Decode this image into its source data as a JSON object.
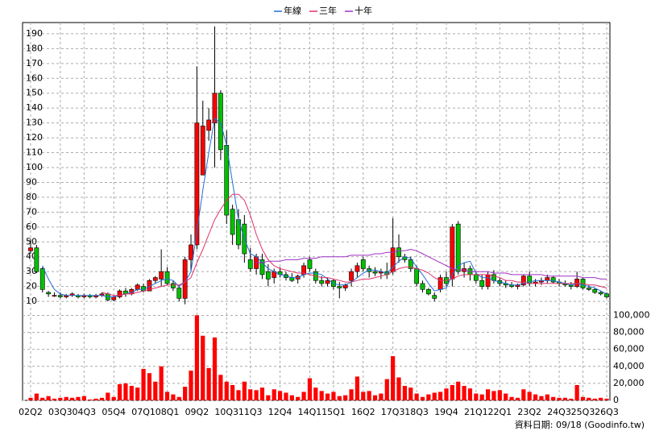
{
  "chart_data": {
    "type": "candlestick",
    "footnote": "資料日期: 09/18 (Goodinfo.tw)",
    "up_color": "#ff0000",
    "down_color": "#00c000",
    "categories": [
      "02Q2",
      null,
      null,
      null,
      null,
      "03Q3",
      null,
      null,
      null,
      "04Q3",
      null,
      null,
      null,
      null,
      "05Q4",
      null,
      null,
      null,
      null,
      "07Q1",
      null,
      null,
      null,
      "08Q1",
      null,
      null,
      null,
      null,
      "09Q2",
      null,
      null,
      null,
      null,
      "10Q3",
      null,
      null,
      null,
      "11Q3",
      null,
      null,
      null,
      null,
      "12Q4",
      null,
      null,
      null,
      null,
      "14Q1",
      null,
      null,
      null,
      "15Q1",
      null,
      null,
      null,
      null,
      "16Q2",
      null,
      null,
      null,
      null,
      "17Q3",
      null,
      null,
      null,
      "18Q3",
      null,
      null,
      null,
      null,
      "19Q4",
      null,
      null,
      null,
      null,
      "21Q1",
      null,
      null,
      null,
      "22Q1",
      null,
      null,
      null,
      null,
      "23Q2",
      null,
      null,
      null,
      null,
      "24Q3",
      null,
      null,
      null,
      "25Q3",
      null,
      null,
      null,
      "26Q3"
    ],
    "open": [
      44,
      46,
      32,
      16,
      14,
      14,
      13,
      14,
      14,
      13,
      14,
      13,
      14,
      15,
      11,
      13,
      17,
      15,
      18,
      20,
      17,
      24,
      25,
      30,
      22,
      19,
      12,
      38,
      48,
      95,
      125,
      130,
      150,
      115,
      72,
      65,
      62,
      38,
      32,
      38,
      30,
      26,
      30,
      28,
      26,
      25,
      28,
      38,
      30,
      24,
      22,
      24,
      20,
      19,
      24,
      30,
      38,
      32,
      30,
      29,
      30,
      30,
      46,
      40,
      38,
      32,
      22,
      18,
      14,
      18,
      26,
      25,
      62,
      30,
      32,
      28,
      24,
      20,
      28,
      24,
      22,
      21,
      20,
      21,
      27,
      22,
      23,
      24,
      26,
      23,
      22,
      21,
      20,
      25,
      19,
      18,
      16,
      15
    ],
    "high": [
      52,
      48,
      33,
      17,
      16,
      16,
      15,
      16,
      15,
      15,
      15,
      15,
      16,
      16,
      14,
      18,
      19,
      19,
      22,
      22,
      25,
      27,
      45,
      33,
      24,
      21,
      40,
      55,
      168,
      145,
      140,
      195,
      152,
      125,
      75,
      72,
      68,
      46,
      42,
      42,
      35,
      32,
      33,
      30,
      29,
      28,
      36,
      40,
      32,
      27,
      26,
      25,
      23,
      22,
      32,
      36,
      40,
      34,
      33,
      32,
      36,
      66,
      55,
      42,
      40,
      34,
      24,
      19,
      16,
      28,
      30,
      62,
      64,
      36,
      34,
      30,
      28,
      30,
      31,
      26,
      24,
      23,
      22,
      28,
      30,
      25,
      26,
      28,
      27,
      25,
      24,
      23,
      30,
      26,
      21,
      19,
      17,
      16
    ],
    "low": [
      42,
      29,
      16,
      13,
      13,
      12,
      12,
      13,
      12,
      12,
      12,
      12,
      13,
      10,
      10,
      12,
      13,
      14,
      17,
      16,
      17,
      22,
      20,
      21,
      17,
      10,
      8,
      30,
      45,
      95,
      118,
      100,
      105,
      62,
      48,
      45,
      36,
      30,
      28,
      25,
      20,
      22,
      26,
      24,
      23,
      22,
      26,
      30,
      22,
      20,
      20,
      18,
      12,
      17,
      20,
      26,
      30,
      26,
      27,
      25,
      25,
      28,
      36,
      36,
      30,
      20,
      16,
      14,
      10,
      16,
      20,
      20,
      28,
      26,
      24,
      22,
      18,
      18,
      22,
      20,
      19,
      19,
      18,
      20,
      20,
      20,
      21,
      22,
      22,
      20,
      20,
      18,
      19,
      18,
      17,
      15,
      14,
      12
    ],
    "close": [
      46,
      30,
      18,
      15,
      14,
      13,
      14,
      15,
      13,
      14,
      13,
      14,
      15,
      11,
      13,
      17,
      15,
      18,
      21,
      17,
      24,
      26,
      30,
      22,
      19,
      12,
      38,
      48,
      130,
      128,
      132,
      150,
      112,
      68,
      55,
      48,
      42,
      32,
      40,
      28,
      25,
      30,
      28,
      26,
      24,
      27,
      34,
      32,
      24,
      22,
      24,
      20,
      19,
      21,
      30,
      34,
      32,
      30,
      29,
      30,
      28,
      46,
      40,
      38,
      32,
      22,
      18,
      15,
      12,
      26,
      22,
      60,
      30,
      32,
      28,
      24,
      20,
      28,
      24,
      22,
      21,
      20,
      21,
      27,
      22,
      23,
      24,
      26,
      23,
      22,
      21,
      20,
      25,
      19,
      18,
      16,
      15,
      13
    ],
    "volume": {
      "color": "#ff0000",
      "values": [
        3000,
        8000,
        3000,
        5000,
        2000,
        3000,
        4000,
        3000,
        4000,
        5000,
        1000,
        2000,
        3000,
        9000,
        4000,
        19000,
        20000,
        17000,
        15000,
        37000,
        32000,
        22000,
        40000,
        10000,
        7000,
        4000,
        16000,
        35000,
        100000,
        76000,
        38000,
        74000,
        30000,
        22000,
        18000,
        12000,
        22000,
        13000,
        12000,
        15000,
        6000,
        13000,
        11000,
        9000,
        6000,
        4000,
        10000,
        26000,
        15000,
        11000,
        8000,
        10000,
        5000,
        6000,
        13000,
        28000,
        10000,
        11000,
        6000,
        8000,
        25000,
        52000,
        27000,
        17000,
        15000,
        8000,
        4000,
        7000,
        9000,
        10000,
        14000,
        18000,
        22000,
        17000,
        14000,
        8000,
        7000,
        13000,
        11000,
        12000,
        8000,
        4000,
        3000,
        13000,
        10000,
        7000,
        5000,
        7000,
        4000,
        3000,
        3000,
        2000,
        18000,
        4000,
        3000,
        2000,
        3000,
        2000
      ]
    },
    "series": [
      {
        "name": "年線",
        "color": "#1e6fd9",
        "values": [
          null,
          null,
          34,
          25,
          18,
          15,
          14,
          14,
          14,
          14,
          14,
          14,
          14,
          13,
          13,
          14,
          15,
          16,
          18,
          18,
          20,
          22,
          24,
          25,
          24,
          20,
          23,
          30,
          57,
          85,
          110,
          133,
          130,
          115,
          90,
          65,
          52,
          42,
          40,
          36,
          32,
          30,
          28,
          27,
          26,
          26,
          28,
          29,
          29,
          28,
          25,
          22,
          21,
          21,
          23,
          26,
          29,
          31,
          31,
          30,
          29,
          33,
          37,
          40,
          39,
          33,
          28,
          22,
          17,
          18,
          19,
          28,
          34,
          36,
          37,
          29,
          26,
          26,
          24,
          23,
          22,
          21,
          21,
          22,
          23,
          24,
          24,
          24,
          24,
          23,
          22,
          21,
          22,
          21,
          20,
          19,
          17,
          15
        ]
      },
      {
        "name": "三年",
        "color": "#e0306a",
        "values": [
          null,
          null,
          null,
          null,
          null,
          null,
          null,
          null,
          null,
          null,
          null,
          null,
          16,
          15,
          14,
          14,
          15,
          15,
          16,
          17,
          18,
          19,
          20,
          21,
          21,
          21,
          23,
          26,
          36,
          45,
          55,
          65,
          72,
          78,
          82,
          82,
          78,
          68,
          55,
          45,
          38,
          34,
          32,
          31,
          30,
          29,
          29,
          28,
          27,
          26,
          26,
          25,
          24,
          23,
          23,
          24,
          25,
          25,
          26,
          27,
          28,
          30,
          32,
          33,
          33,
          32,
          31,
          29,
          26,
          24,
          24,
          25,
          27,
          28,
          28,
          28,
          28,
          28,
          27,
          26,
          24,
          24,
          23,
          23,
          22,
          22,
          22,
          22,
          22,
          22,
          22,
          22,
          22,
          22,
          21,
          21,
          20,
          19
        ]
      },
      {
        "name": "十年",
        "color": "#a030c8",
        "values": [
          null,
          null,
          null,
          null,
          null,
          null,
          null,
          null,
          null,
          null,
          null,
          null,
          null,
          null,
          null,
          null,
          null,
          null,
          null,
          null,
          null,
          null,
          null,
          null,
          null,
          null,
          null,
          null,
          null,
          null,
          null,
          null,
          null,
          null,
          null,
          null,
          null,
          null,
          36,
          36,
          37,
          37,
          37,
          38,
          38,
          38,
          39,
          39,
          39,
          40,
          40,
          40,
          40,
          40,
          41,
          41,
          41,
          41,
          42,
          42,
          43,
          43,
          44,
          44,
          45,
          44,
          42,
          40,
          38,
          36,
          34,
          32,
          31,
          31,
          30,
          30,
          30,
          30,
          29,
          29,
          29,
          28,
          28,
          28,
          28,
          28,
          28,
          27,
          27,
          27,
          27,
          27,
          27,
          26,
          26,
          26,
          25,
          25
        ]
      }
    ],
    "ylim": [
      3,
      197
    ],
    "yticks": [
      10,
      20,
      30,
      40,
      50,
      60,
      70,
      80,
      90,
      100,
      110,
      120,
      130,
      140,
      150,
      160,
      170,
      180,
      190
    ],
    "y2lim": [
      0,
      108000
    ],
    "y2ticks": [
      0,
      {
        "value": 20000,
        "label": "20,000"
      },
      {
        "value": 40000,
        "label": "40,000"
      },
      {
        "value": 60000,
        "label": "60,000"
      },
      {
        "value": 80000,
        "label": "80,000"
      },
      {
        "value": 100000,
        "label": "100,000"
      }
    ],
    "grid": true
  }
}
